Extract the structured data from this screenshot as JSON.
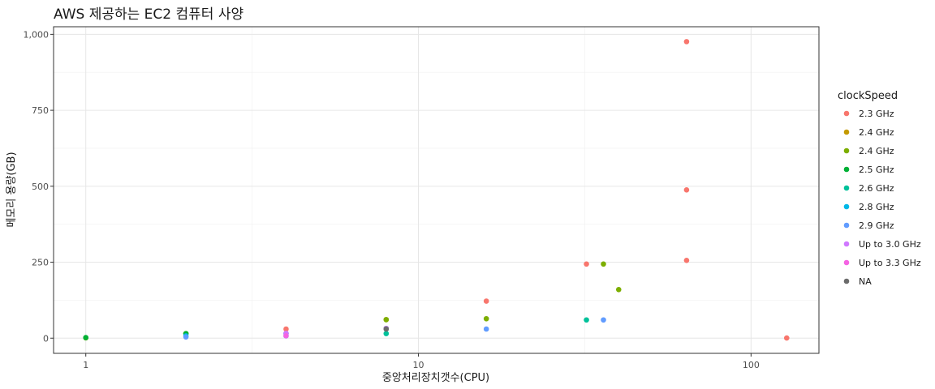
{
  "chart_data": {
    "type": "scatter",
    "title": "AWS 제공하는 EC2 컴퓨터 사양",
    "xlabel": "중앙처리장치갯수(CPU)",
    "ylabel": "메모리 용량(GB)",
    "x_scale": "log10",
    "xlim": [
      0.8,
      160
    ],
    "ylim": [
      -50,
      1025
    ],
    "x_ticks": [
      1,
      10,
      100
    ],
    "x_tick_labels": [
      "1",
      "10",
      "100"
    ],
    "y_ticks": [
      0,
      250,
      500,
      750,
      1000
    ],
    "y_tick_labels": [
      "0",
      "250",
      "500",
      "750",
      "1,000"
    ],
    "grid": true,
    "legend": {
      "title": "clockSpeed",
      "placement": "right",
      "entries": [
        {
          "label": "2.3 GHz",
          "color": "#F8766D"
        },
        {
          "label": "2.4  GHz",
          "color": "#C49A00"
        },
        {
          "label": "2.4 GHz",
          "color": "#7CAE00"
        },
        {
          "label": "2.5 GHz",
          "color": "#00B035"
        },
        {
          "label": "2.6 GHz",
          "color": "#00C19A"
        },
        {
          "label": "2.8 GHz",
          "color": "#00B8E7"
        },
        {
          "label": "2.9 GHz",
          "color": "#619CFF"
        },
        {
          "label": "Up to 3.0 GHz",
          "color": "#D078FF"
        },
        {
          "label": "Up to 3.3 GHz",
          "color": "#F564E3"
        },
        {
          "label": "NA",
          "color": "#6B6B6B"
        }
      ]
    },
    "series": [
      {
        "name": "2.3 GHz",
        "points": [
          [
            4,
            30
          ],
          [
            16,
            122
          ],
          [
            32,
            244
          ],
          [
            64,
            976
          ],
          [
            64,
            488
          ],
          [
            64,
            256
          ],
          [
            128,
            0.5
          ]
        ]
      },
      {
        "name": "2.4  GHz",
        "points": [
          [
            8,
            61
          ]
        ]
      },
      {
        "name": "2.4 GHz",
        "points": [
          [
            1,
            1
          ],
          [
            2,
            15
          ],
          [
            8,
            61
          ],
          [
            16,
            64
          ],
          [
            36,
            244
          ],
          [
            40,
            160
          ]
        ]
      },
      {
        "name": "2.5 GHz",
        "points": [
          [
            1,
            2
          ],
          [
            2,
            15
          ],
          [
            8,
            32
          ]
        ]
      },
      {
        "name": "2.6 GHz",
        "points": [
          [
            8,
            15
          ],
          [
            32,
            60
          ]
        ]
      },
      {
        "name": "2.8 GHz",
        "points": [
          [
            2,
            7.5
          ],
          [
            4,
            15
          ]
        ]
      },
      {
        "name": "2.9 GHz",
        "points": [
          [
            2,
            3.75
          ],
          [
            4,
            7.5
          ],
          [
            16,
            30
          ],
          [
            36,
            60
          ]
        ]
      },
      {
        "name": "Up to 3.0 GHz",
        "points": [
          [
            4,
            16
          ],
          [
            8,
            32
          ]
        ]
      },
      {
        "name": "Up to 3.3 GHz",
        "points": [
          [
            4,
            8
          ]
        ]
      },
      {
        "name": "NA",
        "points": [
          [
            8,
            30
          ]
        ]
      }
    ]
  }
}
